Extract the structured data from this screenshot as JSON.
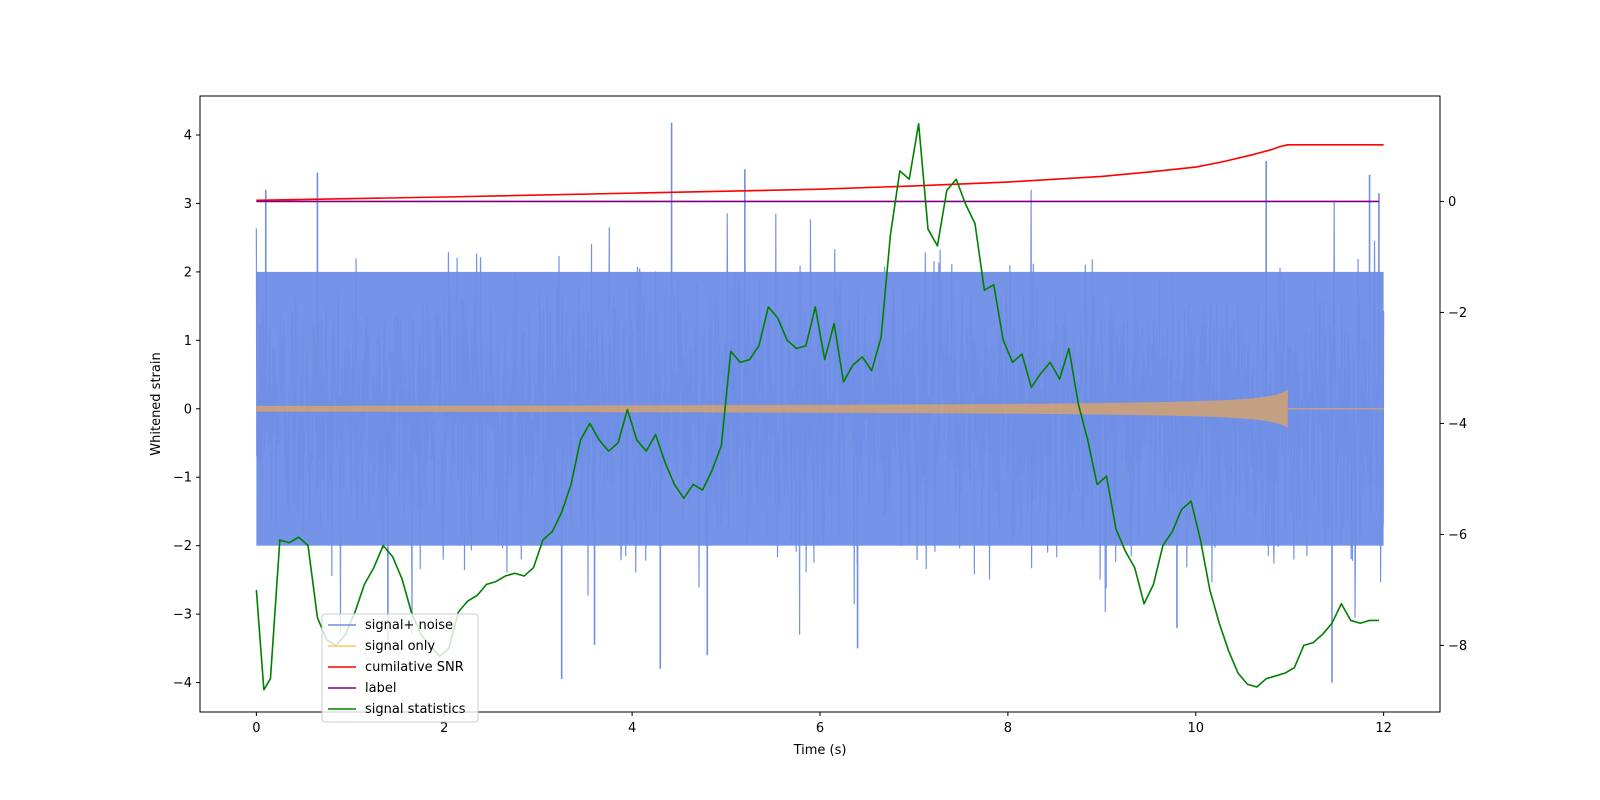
{
  "chart_data": {
    "type": "line",
    "title": "",
    "xlabel": "Time (s)",
    "ylabel": "Whitened strain",
    "xlim": [
      -0.6,
      12.6
    ],
    "ylim": [
      -4.43,
      4.57
    ],
    "y2lim": [
      -9.2,
      1.9
    ],
    "xticks": [
      0,
      2,
      4,
      6,
      8,
      10,
      12
    ],
    "yticks": [
      -4,
      -3,
      -2,
      -1,
      0,
      1,
      2,
      3,
      4
    ],
    "y2ticks": [
      -8,
      -6,
      -4,
      -2,
      0
    ],
    "grid": false,
    "legend_position": "lower-left",
    "series": [
      {
        "name": "signal+ noise",
        "axis": "left",
        "color": "#6f8ee6",
        "style": "noise",
        "description_of_values": "dense gaussian whitened noise, amplitude roughly -4 to 4.2, sampled over 0 to 12 s",
        "envelope": {
          "x": [
            0,
            12
          ],
          "low": -2.0,
          "high": 2.0
        },
        "peaks": [
          {
            "x": 0.1,
            "y": 3.2
          },
          {
            "x": 0.65,
            "y": 3.45
          },
          {
            "x": 1.4,
            "y": -3.5
          },
          {
            "x": 3.25,
            "y": -3.95
          },
          {
            "x": 3.6,
            "y": -3.45
          },
          {
            "x": 4.3,
            "y": -3.8
          },
          {
            "x": 4.42,
            "y": 4.18
          },
          {
            "x": 4.8,
            "y": -3.6
          },
          {
            "x": 5.2,
            "y": 3.5
          },
          {
            "x": 6.4,
            "y": -3.5
          },
          {
            "x": 9.8,
            "y": -3.2
          },
          {
            "x": 10.75,
            "y": 3.62
          },
          {
            "x": 11.45,
            "y": -4.0
          },
          {
            "x": 11.85,
            "y": 3.42
          },
          {
            "x": 11.95,
            "y": 3.15
          }
        ]
      },
      {
        "name": "signal only",
        "axis": "left",
        "color": "#c9a07c",
        "style": "chirp",
        "description_of_values": "inspiral chirp, amplitude near 0 rising to about 0.28 at 10.98 s, zero after merger",
        "x_start": 0,
        "x_merger": 10.98,
        "x_end": 12,
        "peak_amplitude": 0.28
      },
      {
        "name": "cumilative SNR",
        "axis": "right",
        "color": "#ff0000",
        "x": [
          0,
          2,
          4,
          6,
          7,
          8,
          9,
          9.5,
          10,
          10.3,
          10.6,
          10.8,
          10.9,
          10.98,
          11,
          12
        ],
        "y": [
          0.02,
          0.08,
          0.15,
          0.22,
          0.28,
          0.35,
          0.45,
          0.53,
          0.62,
          0.72,
          0.84,
          0.93,
          0.99,
          1.02,
          1.02,
          1.02
        ]
      },
      {
        "name": "label",
        "axis": "right",
        "color": "#800080",
        "x": [
          0,
          11.95
        ],
        "y": [
          0,
          0
        ]
      },
      {
        "name": "signal statistics",
        "axis": "right",
        "color": "#008000",
        "x": [
          0,
          0.08,
          0.15,
          0.25,
          0.35,
          0.45,
          0.55,
          0.65,
          0.75,
          0.85,
          0.95,
          1.05,
          1.15,
          1.25,
          1.35,
          1.45,
          1.55,
          1.65,
          1.75,
          1.85,
          1.95,
          2.05,
          2.15,
          2.25,
          2.35,
          2.45,
          2.55,
          2.65,
          2.75,
          2.85,
          2.95,
          3.05,
          3.15,
          3.25,
          3.35,
          3.45,
          3.55,
          3.65,
          3.75,
          3.85,
          3.95,
          4.05,
          4.15,
          4.25,
          4.35,
          4.45,
          4.55,
          4.65,
          4.75,
          4.85,
          4.95,
          5.05,
          5.15,
          5.25,
          5.35,
          5.45,
          5.55,
          5.65,
          5.75,
          5.85,
          5.95,
          6.05,
          6.15,
          6.25,
          6.35,
          6.45,
          6.55,
          6.65,
          6.75,
          6.85,
          6.95,
          7.05,
          7.15,
          7.25,
          7.35,
          7.45,
          7.55,
          7.65,
          7.75,
          7.85,
          7.95,
          8.05,
          8.15,
          8.25,
          8.35,
          8.45,
          8.55,
          8.65,
          8.75,
          8.85,
          8.95,
          9.05,
          9.15,
          9.25,
          9.35,
          9.45,
          9.55,
          9.65,
          9.75,
          9.85,
          9.95,
          10.05,
          10.15,
          10.25,
          10.35,
          10.45,
          10.55,
          10.65,
          10.75,
          10.85,
          10.95,
          11.05,
          11.15,
          11.25,
          11.35,
          11.45,
          11.55,
          11.65,
          11.75,
          11.85,
          11.95
        ],
        "y": [
          -7.0,
          -8.8,
          -8.6,
          -6.1,
          -6.15,
          -6.05,
          -6.2,
          -7.5,
          -7.9,
          -8.0,
          -7.8,
          -7.4,
          -6.9,
          -6.6,
          -6.2,
          -6.4,
          -6.8,
          -7.4,
          -7.8,
          -8.0,
          -8.2,
          -8.05,
          -7.4,
          -7.2,
          -7.1,
          -6.9,
          -6.85,
          -6.75,
          -6.7,
          -6.75,
          -6.6,
          -6.1,
          -5.95,
          -5.6,
          -5.1,
          -4.3,
          -4.0,
          -4.3,
          -4.5,
          -4.35,
          -3.75,
          -4.3,
          -4.5,
          -4.2,
          -4.7,
          -5.1,
          -5.35,
          -5.1,
          -5.2,
          -4.85,
          -4.4,
          -2.7,
          -2.9,
          -2.85,
          -2.6,
          -1.9,
          -2.1,
          -2.5,
          -2.65,
          -2.6,
          -1.9,
          -2.85,
          -2.2,
          -3.25,
          -2.95,
          -2.8,
          -3.05,
          -2.45,
          -0.6,
          0.55,
          0.4,
          1.4,
          -0.5,
          -0.8,
          0.2,
          0.4,
          -0.05,
          -0.4,
          -1.6,
          -1.5,
          -2.5,
          -2.9,
          -2.75,
          -3.35,
          -3.1,
          -2.9,
          -3.2,
          -2.65,
          -3.65,
          -4.3,
          -5.1,
          -4.95,
          -5.9,
          -6.3,
          -6.6,
          -7.25,
          -6.9,
          -6.2,
          -5.95,
          -5.55,
          -5.4,
          -6.1,
          -7.0,
          -7.6,
          -8.1,
          -8.5,
          -8.7,
          -8.75,
          -8.6,
          -8.55,
          -8.5,
          -8.4,
          -8.0,
          -7.95,
          -7.8,
          -7.6,
          -7.25,
          -7.55,
          -7.6,
          -7.55,
          -7.55
        ]
      }
    ]
  }
}
